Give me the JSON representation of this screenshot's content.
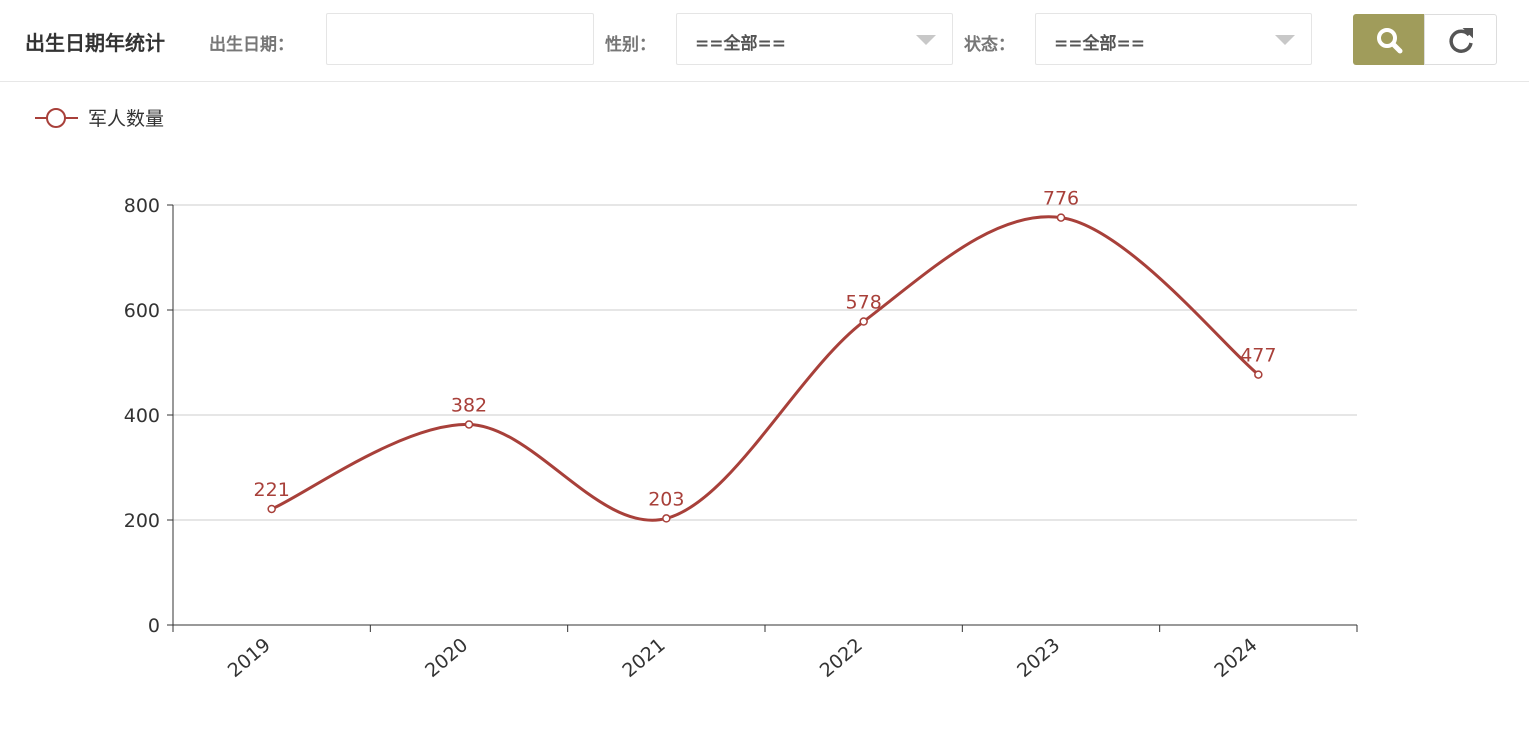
{
  "header": {
    "title": "出生日期年统计",
    "date_label": "出生日期：",
    "gender_label": "性别：",
    "gender_value": "==全部==",
    "status_label": "状态：",
    "status_value": "==全部=="
  },
  "chart_data": {
    "type": "line",
    "categories": [
      "2019",
      "2020",
      "2021",
      "2022",
      "2023",
      "2024"
    ],
    "series": [
      {
        "name": "军人数量",
        "color": "#a8403a",
        "values": [
          221,
          382,
          203,
          578,
          776,
          477
        ]
      }
    ],
    "ylim": [
      0,
      800
    ],
    "yticks": [
      0,
      200,
      400,
      600,
      800
    ],
    "grid": true,
    "smooth": true,
    "data_labels": true
  }
}
